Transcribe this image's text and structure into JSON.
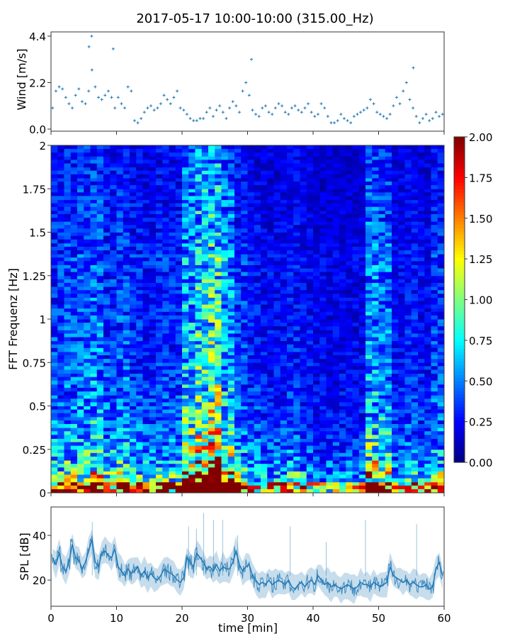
{
  "chart_data": [
    {
      "type": "scatter",
      "title": "2017-05-17 10:00-10:00 (315.00_Hz)",
      "ylabel": "Wind [m/s]",
      "xlim": [
        0,
        60
      ],
      "ylim": [
        -0.1,
        4.6
      ],
      "yticks": [
        "0.0",
        "2.2",
        "4.4"
      ],
      "ytick_values": [
        0,
        2.2,
        4.4
      ],
      "color": "#1f77b4",
      "x_step_min": 0.5,
      "values": [
        1.0,
        1.8,
        2.0,
        1.9,
        1.5,
        1.2,
        1.0,
        1.6,
        1.9,
        1.3,
        1.2,
        1.8,
        2.8,
        2.0,
        1.5,
        1.4,
        1.6,
        1.8,
        1.5,
        1.0,
        1.5,
        1.2,
        1.0,
        2.0,
        1.8,
        0.4,
        0.3,
        0.5,
        0.8,
        1.0,
        1.1,
        0.9,
        1.0,
        1.2,
        1.6,
        1.4,
        1.2,
        1.5,
        1.8,
        1.0,
        0.9,
        0.7,
        0.5,
        0.4,
        0.4,
        0.5,
        0.5,
        0.8,
        1.0,
        0.6,
        0.9,
        1.1,
        0.8,
        0.5,
        1.0,
        1.3,
        1.1,
        0.8,
        1.8,
        2.2,
        1.6,
        0.9,
        0.7,
        0.6,
        1.0,
        1.1,
        0.8,
        0.7,
        1.0,
        1.2,
        1.1,
        0.8,
        0.7,
        1.0,
        1.1,
        0.9,
        0.8,
        1.0,
        1.2,
        0.8,
        0.6,
        0.7,
        1.2,
        1.0,
        0.6,
        0.3,
        0.3,
        0.4,
        0.7,
        0.5,
        0.4,
        0.3,
        0.6,
        0.7,
        0.8,
        0.9,
        1.0,
        1.4,
        1.2,
        0.8,
        0.7,
        0.6,
        0.5,
        0.7,
        1.1,
        1.5,
        1.2,
        1.8,
        2.2,
        1.4,
        1.0,
        0.6,
        0.3,
        0.5,
        0.7,
        0.4,
        0.5,
        0.8,
        0.6,
        0.7
      ],
      "peaks": [
        [
          6.2,
          4.4
        ],
        [
          5.8,
          3.9
        ],
        [
          9.5,
          3.8
        ],
        [
          30.6,
          3.3
        ],
        [
          55.3,
          2.9
        ]
      ]
    },
    {
      "type": "heatmap",
      "ylabel": "FFT Frequenz [Hz]",
      "xlim": [
        0,
        60
      ],
      "ylim": [
        0,
        2
      ],
      "yticks": [
        "0",
        "0.25",
        "0.5",
        "0.75",
        "1",
        "1.25",
        "1.5",
        "1.75",
        "2"
      ],
      "time_bin_min": 2,
      "freq_bin_hz": 0.0625,
      "time_profile": [
        1.0,
        1.1,
        1.2,
        1.3,
        1.0,
        1.1,
        0.9,
        0.8,
        0.9,
        0.9,
        1.7,
        2.1,
        2.3,
        1.6,
        1.0,
        0.8,
        0.7,
        0.7,
        0.8,
        0.7,
        0.6,
        0.6,
        0.6,
        0.6,
        1.5,
        1.3,
        0.7,
        0.8,
        0.7,
        1.0
      ],
      "freq_profile": [
        1.9,
        0.9,
        0.7,
        0.6,
        0.55,
        0.5,
        0.48,
        0.45,
        0.42,
        0.4,
        0.4,
        0.38,
        0.37,
        0.36,
        0.36,
        0.35,
        0.35,
        0.34,
        0.33,
        0.33,
        0.34,
        0.36,
        0.33,
        0.3,
        0.3,
        0.29,
        0.28,
        0.28,
        0.27,
        0.27,
        0.26,
        0.26
      ],
      "colorbar": {
        "range": [
          0,
          2
        ],
        "ticks": [
          "0.00",
          "0.25",
          "0.50",
          "0.75",
          "1.00",
          "1.25",
          "1.50",
          "1.75",
          "2.00"
        ],
        "colormap": "jet"
      }
    },
    {
      "type": "line",
      "ylabel": "SPL [dB]",
      "xlabel": "time [min]",
      "xlim": [
        0,
        60
      ],
      "ylim": [
        8.3,
        52.7
      ],
      "xticks": [
        "0",
        "10",
        "20",
        "30",
        "40",
        "50",
        "60"
      ],
      "yticks": [
        "20",
        "40"
      ],
      "ytick_values": [
        20,
        40
      ],
      "color": "#1f77b4",
      "x_step_min": 0.5,
      "values": [
        30,
        27,
        32,
        26,
        24,
        28,
        36,
        30,
        29,
        25,
        28,
        33,
        38,
        28,
        26,
        32,
        33,
        31,
        30,
        34,
        26,
        24,
        22,
        25,
        23,
        24,
        26,
        22,
        24,
        21,
        23,
        21,
        20,
        22,
        25,
        24,
        23,
        22,
        20,
        19,
        21,
        30,
        28,
        26,
        32,
        30,
        28,
        25,
        26,
        24,
        27,
        24,
        26,
        25,
        25,
        28,
        33,
        27,
        24,
        26,
        27,
        22,
        20,
        18,
        19,
        18,
        20,
        18,
        19,
        20,
        19,
        18,
        20,
        17,
        16,
        18,
        19,
        17,
        19,
        20,
        18,
        22,
        20,
        18,
        19,
        17,
        18,
        17,
        16,
        17,
        18,
        17,
        16,
        17,
        19,
        18,
        18,
        17,
        19,
        18,
        17,
        18,
        19,
        26,
        22,
        21,
        20,
        19,
        20,
        18,
        19,
        18,
        17,
        17,
        18,
        16,
        17,
        25,
        28,
        22
      ],
      "peaks": [
        [
          6.3,
          46
        ],
        [
          21.0,
          44
        ],
        [
          22.2,
          43
        ],
        [
          23.3,
          50
        ],
        [
          24.8,
          47
        ],
        [
          26.2,
          47
        ],
        [
          28.5,
          40
        ],
        [
          36.5,
          44
        ],
        [
          42.0,
          37
        ],
        [
          48.0,
          47
        ],
        [
          55.8,
          45
        ]
      ]
    }
  ]
}
